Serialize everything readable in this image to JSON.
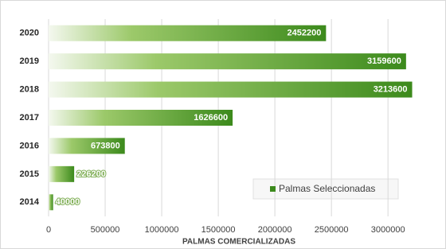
{
  "chart_data": {
    "type": "bar",
    "orientation": "horizontal",
    "categories": [
      "2020",
      "2019",
      "2018",
      "2017",
      "2016",
      "2015",
      "2014"
    ],
    "series": [
      {
        "name": "Palmas Seleccionadas",
        "color": "#3c8a1c",
        "values": [
          2452200,
          3159600,
          3213600,
          1626600,
          673800,
          226200,
          40000
        ]
      }
    ],
    "xlabel": "PALMAS COMERCIALIZADAS",
    "xlim": [
      0,
      3400000
    ],
    "xticks": [
      0,
      500000,
      1000000,
      1500000,
      2000000,
      2500000,
      3000000
    ],
    "grid": true
  }
}
